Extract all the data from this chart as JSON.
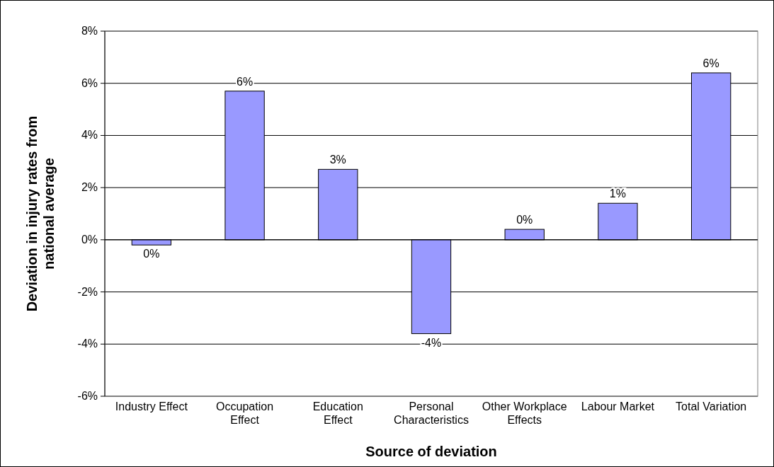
{
  "chart_data": {
    "type": "bar",
    "xlabel": "Source of deviation",
    "ylabel": "Deviation in injury rates from national average",
    "categories": [
      "Industry Effect",
      "Occupation Effect",
      "Education Effect",
      "Personal Characteristics",
      "Other Workplace Effects",
      "Labour Market",
      "Total Variation"
    ],
    "values": [
      -0.2,
      5.7,
      2.7,
      -3.6,
      0.4,
      1.4,
      6.4
    ],
    "value_labels": [
      "0%",
      "6%",
      "3%",
      "-4%",
      "0%",
      "1%",
      "6%"
    ],
    "color": "#9999ff",
    "ylim": [
      -6,
      8
    ],
    "yticks": [
      {
        "value": -6,
        "label": "-6%"
      },
      {
        "value": -4,
        "label": "-4%"
      },
      {
        "value": -2,
        "label": "-2%"
      },
      {
        "value": 0,
        "label": "0%"
      },
      {
        "value": 2,
        "label": "2%"
      },
      {
        "value": 4,
        "label": "4%"
      },
      {
        "value": 6,
        "label": "6%"
      },
      {
        "value": 8,
        "label": "8%"
      }
    ],
    "grid": "y"
  }
}
